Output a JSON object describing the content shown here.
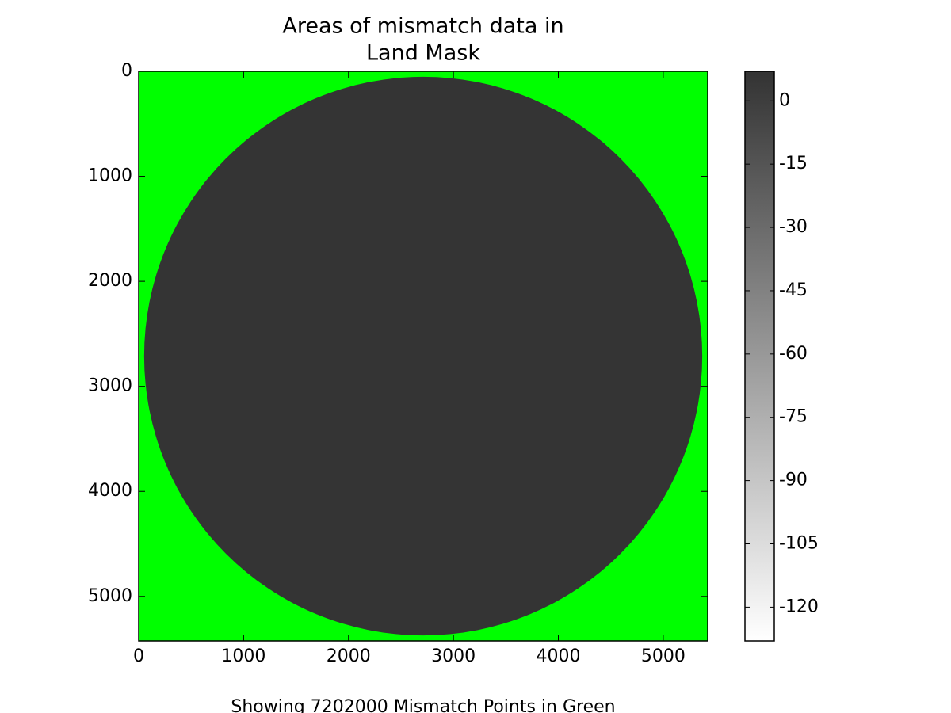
{
  "chart_data": {
    "type": "image",
    "title": [
      "Areas of mismatch data in",
      "Land Mask"
    ],
    "xlabel": "Showing 7202000 Mismatch Points in Green",
    "xlim": [
      0,
      5424
    ],
    "ylim": [
      5424,
      0
    ],
    "xticks": [
      0,
      1000,
      2000,
      3000,
      4000,
      5000
    ],
    "yticks": [
      0,
      1000,
      2000,
      3000,
      4000,
      5000
    ],
    "background_color": "#00ff00",
    "disk": {
      "center": [
        2712,
        2712
      ],
      "radius": 2660,
      "color": "#343434"
    },
    "colorbar": {
      "lim": [
        -128,
        7
      ],
      "ticks": [
        0,
        -15,
        -30,
        -45,
        -60,
        -75,
        -90,
        -105,
        -120
      ],
      "colors": [
        "#ffffff",
        "#333333"
      ]
    }
  }
}
